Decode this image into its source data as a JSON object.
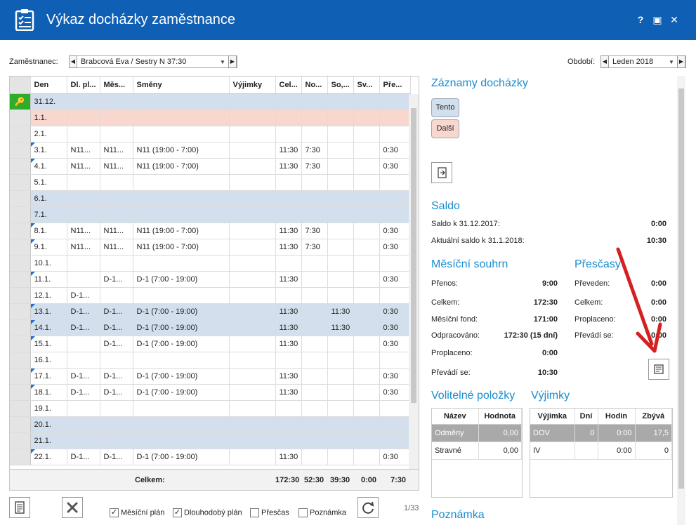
{
  "window": {
    "title": "Výkaz docházky zaměstnance",
    "help": "?",
    "maximize": "▣",
    "close": "✕"
  },
  "filters": {
    "employee_label": "Zaměstnanec:",
    "employee_value": "Brabcová Eva / Sestry N 37:30",
    "period_label": "Období:",
    "period_value": "Leden 2018"
  },
  "grid": {
    "columns": [
      "Den",
      "Dl. pl...",
      "Měs...",
      "Směny",
      "Výjimky",
      "Cel...",
      "No...",
      "So,...",
      "Sv...",
      "Pře..."
    ],
    "rows": [
      {
        "den": "31.12.",
        "dl": "",
        "mes": "",
        "smeny": "",
        "vyj": "",
        "cel": "",
        "no": "",
        "so": "",
        "sv": "",
        "pre": "",
        "style": "blue",
        "mark": false,
        "first": true
      },
      {
        "den": "1.1.",
        "dl": "",
        "mes": "",
        "smeny": "",
        "vyj": "",
        "cel": "",
        "no": "",
        "so": "",
        "sv": "",
        "pre": "",
        "style": "pink",
        "mark": false
      },
      {
        "den": "2.1.",
        "dl": "",
        "mes": "",
        "smeny": "",
        "vyj": "",
        "cel": "",
        "no": "",
        "so": "",
        "sv": "",
        "pre": "",
        "style": "",
        "mark": false
      },
      {
        "den": "3.1.",
        "dl": "N11...",
        "mes": "N11...",
        "smeny": "N11 (19:00 - 7:00)",
        "vyj": "",
        "cel": "11:30",
        "no": "7:30",
        "so": "",
        "sv": "",
        "pre": "0:30",
        "style": "",
        "mark": true
      },
      {
        "den": "4.1.",
        "dl": "N11...",
        "mes": "N11...",
        "smeny": "N11 (19:00 - 7:00)",
        "vyj": "",
        "cel": "11:30",
        "no": "7:30",
        "so": "",
        "sv": "",
        "pre": "0:30",
        "style": "",
        "mark": true
      },
      {
        "den": "5.1.",
        "dl": "",
        "mes": "",
        "smeny": "",
        "vyj": "",
        "cel": "",
        "no": "",
        "so": "",
        "sv": "",
        "pre": "",
        "style": "",
        "mark": false
      },
      {
        "den": "6.1.",
        "dl": "",
        "mes": "",
        "smeny": "",
        "vyj": "",
        "cel": "",
        "no": "",
        "so": "",
        "sv": "",
        "pre": "",
        "style": "blue",
        "mark": false
      },
      {
        "den": "7.1.",
        "dl": "",
        "mes": "",
        "smeny": "",
        "vyj": "",
        "cel": "",
        "no": "",
        "so": "",
        "sv": "",
        "pre": "",
        "style": "blue",
        "mark": false
      },
      {
        "den": "8.1.",
        "dl": "N11...",
        "mes": "N11...",
        "smeny": "N11 (19:00 - 7:00)",
        "vyj": "",
        "cel": "11:30",
        "no": "7:30",
        "so": "",
        "sv": "",
        "pre": "0:30",
        "style": "",
        "mark": true
      },
      {
        "den": "9.1.",
        "dl": "N11...",
        "mes": "N11...",
        "smeny": "N11 (19:00 - 7:00)",
        "vyj": "",
        "cel": "11:30",
        "no": "7:30",
        "so": "",
        "sv": "",
        "pre": "0:30",
        "style": "",
        "mark": true
      },
      {
        "den": "10.1.",
        "dl": "",
        "mes": "",
        "smeny": "",
        "vyj": "",
        "cel": "",
        "no": "",
        "so": "",
        "sv": "",
        "pre": "",
        "style": "",
        "mark": false
      },
      {
        "den": "11.1.",
        "dl": "",
        "mes": "D-1...",
        "smeny": "D-1 (7:00 - 19:00)",
        "vyj": "",
        "cel": "11:30",
        "no": "",
        "so": "",
        "sv": "",
        "pre": "0:30",
        "style": "",
        "mark": true
      },
      {
        "den": "12.1.",
        "dl": "D-1...",
        "mes": "",
        "smeny": "",
        "vyj": "",
        "cel": "",
        "no": "",
        "so": "",
        "sv": "",
        "pre": "",
        "style": "",
        "mark": false
      },
      {
        "den": "13.1.",
        "dl": "D-1...",
        "mes": "D-1...",
        "smeny": "D-1 (7:00 - 19:00)",
        "vyj": "",
        "cel": "11:30",
        "no": "",
        "so": "11:30",
        "sv": "",
        "pre": "0:30",
        "style": "blue",
        "mark": true
      },
      {
        "den": "14.1.",
        "dl": "D-1...",
        "mes": "D-1...",
        "smeny": "D-1 (7:00 - 19:00)",
        "vyj": "",
        "cel": "11:30",
        "no": "",
        "so": "11:30",
        "sv": "",
        "pre": "0:30",
        "style": "blue",
        "mark": true
      },
      {
        "den": "15.1.",
        "dl": "",
        "mes": "D-1...",
        "smeny": "D-1 (7:00 - 19:00)",
        "vyj": "",
        "cel": "11:30",
        "no": "",
        "so": "",
        "sv": "",
        "pre": "0:30",
        "style": "",
        "mark": true
      },
      {
        "den": "16.1.",
        "dl": "",
        "mes": "",
        "smeny": "",
        "vyj": "",
        "cel": "",
        "no": "",
        "so": "",
        "sv": "",
        "pre": "",
        "style": "",
        "mark": false
      },
      {
        "den": "17.1.",
        "dl": "D-1...",
        "mes": "D-1...",
        "smeny": "D-1 (7:00 - 19:00)",
        "vyj": "",
        "cel": "11:30",
        "no": "",
        "so": "",
        "sv": "",
        "pre": "0:30",
        "style": "",
        "mark": true
      },
      {
        "den": "18.1.",
        "dl": "D-1...",
        "mes": "D-1...",
        "smeny": "D-1 (7:00 - 19:00)",
        "vyj": "",
        "cel": "11:30",
        "no": "",
        "so": "",
        "sv": "",
        "pre": "0:30",
        "style": "",
        "mark": true
      },
      {
        "den": "19.1.",
        "dl": "",
        "mes": "",
        "smeny": "",
        "vyj": "",
        "cel": "",
        "no": "",
        "so": "",
        "sv": "",
        "pre": "",
        "style": "",
        "mark": false
      },
      {
        "den": "20.1.",
        "dl": "",
        "mes": "",
        "smeny": "",
        "vyj": "",
        "cel": "",
        "no": "",
        "so": "",
        "sv": "",
        "pre": "",
        "style": "blue",
        "mark": false
      },
      {
        "den": "21.1.",
        "dl": "",
        "mes": "",
        "smeny": "",
        "vyj": "",
        "cel": "",
        "no": "",
        "so": "",
        "sv": "",
        "pre": "",
        "style": "blue",
        "mark": false
      },
      {
        "den": "22.1.",
        "dl": "D-1...",
        "mes": "D-1...",
        "smeny": "D-1 (7:00 - 19:00)",
        "vyj": "",
        "cel": "11:30",
        "no": "",
        "so": "",
        "sv": "",
        "pre": "0:30",
        "style": "",
        "mark": true
      }
    ],
    "footer": {
      "label": "Celkem:",
      "cel": "172:30",
      "no": "52:30",
      "so": "39:30",
      "sv": "0:00",
      "pre": "7:30"
    }
  },
  "bottom": {
    "chk_mesicni": "Měsíční plán",
    "chk_dlouhodoby": "Dlouhodobý plán",
    "chk_prescas": "Přesčas",
    "chk_poznamka": "Poznámka",
    "page_counter": "1/33"
  },
  "right": {
    "zaznamy_title": "Záznamy docházky",
    "tento": "Tento",
    "dalsi": "Další",
    "saldo_title": "Saldo",
    "saldo_k_label": "Saldo k 31.12.2017:",
    "saldo_k_value": "0:00",
    "aktualni_label": "Aktuální saldo k 31.1.2018:",
    "aktualni_value": "10:30",
    "mesicni_title": "Měsíční souhrn",
    "prenos_label": "Přenos:",
    "prenos_value": "9:00",
    "celkem_label": "Celkem:",
    "celkem_value": "172:30",
    "fond_label": "Měsíční fond:",
    "fond_value": "171:00",
    "odprac_label": "Odpracováno:",
    "odprac_value": "172:30 (15 dní)",
    "proplaceno_label": "Proplaceno:",
    "proplaceno_value": "0:00",
    "prevadi_label": "Převádí se:",
    "prevadi_value": "10:30",
    "prescasy_title": "Přesčasy",
    "p_preveden_label": "Převeden:",
    "p_preveden_value": "0:00",
    "p_celkem_label": "Celkem:",
    "p_celkem_value": "0:00",
    "p_proplaceno_label": "Proplaceno:",
    "p_proplaceno_value": "0:00",
    "p_prevadi_label": "Převádí se:",
    "p_prevadi_value": "0:00",
    "volitelne_title": "Volitelné položky",
    "vol_col_nazev": "Název",
    "vol_col_hodnota": "Hodnota",
    "vol_rows": [
      {
        "nazev": "Odměny",
        "hodnota": "0,00"
      },
      {
        "nazev": "Stravné",
        "hodnota": "0,00"
      }
    ],
    "vyjimky_title": "Výjimky",
    "vyj_cols": [
      "Výjimka",
      "Dní",
      "Hodin",
      "Zbývá"
    ],
    "vyj_rows": [
      {
        "vyj": "DOV",
        "dni": "0",
        "hodin": "0:00",
        "zbyva": "17,5"
      },
      {
        "vyj": "IV",
        "dni": "",
        "hodin": "0:00",
        "zbyva": "0"
      }
    ],
    "poznamka_title": "Poznámka"
  },
  "colors": {
    "titlebar": "#0f5fb5",
    "accent": "#1a8dd0",
    "row_blue": "#d3dfec",
    "row_pink": "#f8d7cf",
    "arrow": "#d42020"
  }
}
